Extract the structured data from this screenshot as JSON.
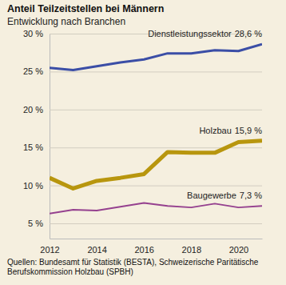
{
  "chart_data": {
    "type": "line",
    "title": "Anteil Teilzeitstellen bei Männern",
    "subtitle": "Entwicklung nach Branchen",
    "source": "Quellen: Bundesamt für Statistik (BESTA), Schweizerische Paritätische Berufskommission Holzbau (SPBH)",
    "x": [
      2012,
      2013,
      2014,
      2015,
      2016,
      2017,
      2018,
      2019,
      2020,
      2021
    ],
    "xlim": [
      2012,
      2021
    ],
    "xticks": [
      2012,
      2014,
      2016,
      2018,
      2020
    ],
    "ylim": [
      3,
      30
    ],
    "yticks": [
      {
        "value": 5,
        "label": "5 %"
      },
      {
        "value": 10,
        "label": "10 %"
      },
      {
        "value": 15,
        "label": "15 %"
      },
      {
        "value": 20,
        "label": "20 %"
      },
      {
        "value": 25,
        "label": "25 %"
      },
      {
        "value": 30,
        "label": "30 %"
      }
    ],
    "grid": true,
    "series": [
      {
        "name": "Dienstleistungssektor",
        "color": "#3b4ea6",
        "values": [
          25.5,
          25.2,
          25.7,
          26.2,
          26.6,
          27.4,
          27.4,
          27.8,
          27.7,
          28.6
        ],
        "value_labels": [
          null,
          null,
          null,
          null,
          null,
          null,
          null,
          null,
          null,
          "28,6 %"
        ]
      },
      {
        "name": "Holzbau",
        "color": "#b8960e",
        "values": [
          11.0,
          9.6,
          10.6,
          11.0,
          11.5,
          14.4,
          14.3,
          14.3,
          15.7,
          15.9
        ],
        "value_labels": [
          null,
          null,
          null,
          null,
          null,
          null,
          null,
          null,
          null,
          "15,9 %"
        ]
      },
      {
        "name": "Baugewerbe",
        "color": "#95418f",
        "values": [
          6.3,
          6.8,
          6.7,
          7.2,
          7.7,
          7.3,
          7.1,
          7.6,
          7.1,
          7.3
        ],
        "value_labels": [
          null,
          null,
          null,
          null,
          null,
          null,
          null,
          null,
          null,
          "7,3 %"
        ]
      }
    ]
  }
}
